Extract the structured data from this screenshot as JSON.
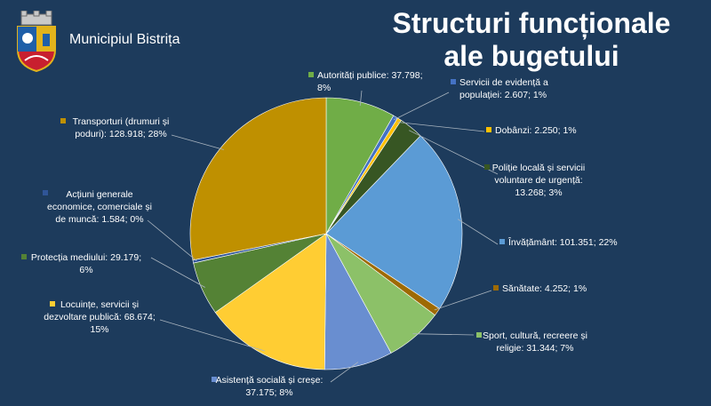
{
  "header": {
    "municipality": "Municipiul Bistrița",
    "title_line1": "Structuri funcționale",
    "title_line2": "ale bugetului"
  },
  "colors": {
    "background": "#1d3b5c",
    "text": "#ffffff",
    "leader_lines": "#a9b4bf"
  },
  "logo": {
    "icon": "coat-of-arms-icon",
    "colors": {
      "shield_red": "#c8202f",
      "shield_blue": "#1f5fa8",
      "gold": "#e2b31c"
    }
  },
  "chart_data": {
    "type": "pie",
    "title": "",
    "unit_note": "",
    "slices": [
      {
        "name": "Autorități publice",
        "value": 37.798,
        "percent": 8,
        "color": "#70ad47",
        "label_lines": [
          "Autorități publice: 37.798;",
          "8%"
        ]
      },
      {
        "name": "Servicii de evidență a populației",
        "value": 2.607,
        "percent": 1,
        "color": "#4472c4",
        "label_lines": [
          "Servicii de evidență a",
          "populației: 2.607; 1%"
        ]
      },
      {
        "name": "Dobânzi",
        "value": 2.25,
        "percent": 1,
        "color": "#ffc000",
        "label_lines": [
          "Dobânzi: 2.250; 1%"
        ]
      },
      {
        "name": "Poliție locală și servicii voluntare de urgență",
        "value": 13.268,
        "percent": 3,
        "color": "#375623",
        "label_lines": [
          "Poliție locală și servicii",
          "voluntare de urgență:",
          "13.268; 3%"
        ]
      },
      {
        "name": "Învățământ",
        "value": 101.351,
        "percent": 22,
        "color": "#5b9bd5",
        "label_lines": [
          "Învățământ: 101.351; 22%"
        ]
      },
      {
        "name": "Sănătate",
        "value": 4.252,
        "percent": 1,
        "color": "#9e6a03",
        "label_lines": [
          "Sănătate: 4.252; 1%"
        ]
      },
      {
        "name": "Sport, cultură, recreere și religie",
        "value": 31.344,
        "percent": 7,
        "color": "#8cc168",
        "label_lines": [
          "Sport, cultură, recreere și",
          "religie: 31.344; 7%"
        ]
      },
      {
        "name": "Asistență socială și creșe",
        "value": 37.175,
        "percent": 8,
        "color": "#698ed0",
        "label_lines": [
          "Asistență socială și creșe:",
          "37.175; 8%"
        ]
      },
      {
        "name": "Locuințe, servicii și dezvoltare publică",
        "value": 68.674,
        "percent": 15,
        "color": "#ffcd33",
        "label_lines": [
          "Locuințe, servicii și",
          "dezvoltare publică: 68.674;",
          "15%"
        ]
      },
      {
        "name": "Protecția mediului",
        "value": 29.179,
        "percent": 6,
        "color": "#548235",
        "label_lines": [
          "Protecția mediului: 29.179;",
          "6%"
        ]
      },
      {
        "name": "Acțiuni generale economice, comerciale și de muncă",
        "value": 1.584,
        "percent": 0,
        "color": "#2f5597",
        "label_lines": [
          "Acțiuni generale",
          "economice, comerciale și",
          "de muncă: 1.584; 0%"
        ]
      },
      {
        "name": "Transporturi (drumuri și poduri)",
        "value": 128.918,
        "percent": 28,
        "color": "#bf9000",
        "label_lines": [
          "Transporturi (drumuri și",
          "poduri): 128.918; 28%"
        ]
      }
    ],
    "legend": "none",
    "labels": "outside with leader lines"
  }
}
